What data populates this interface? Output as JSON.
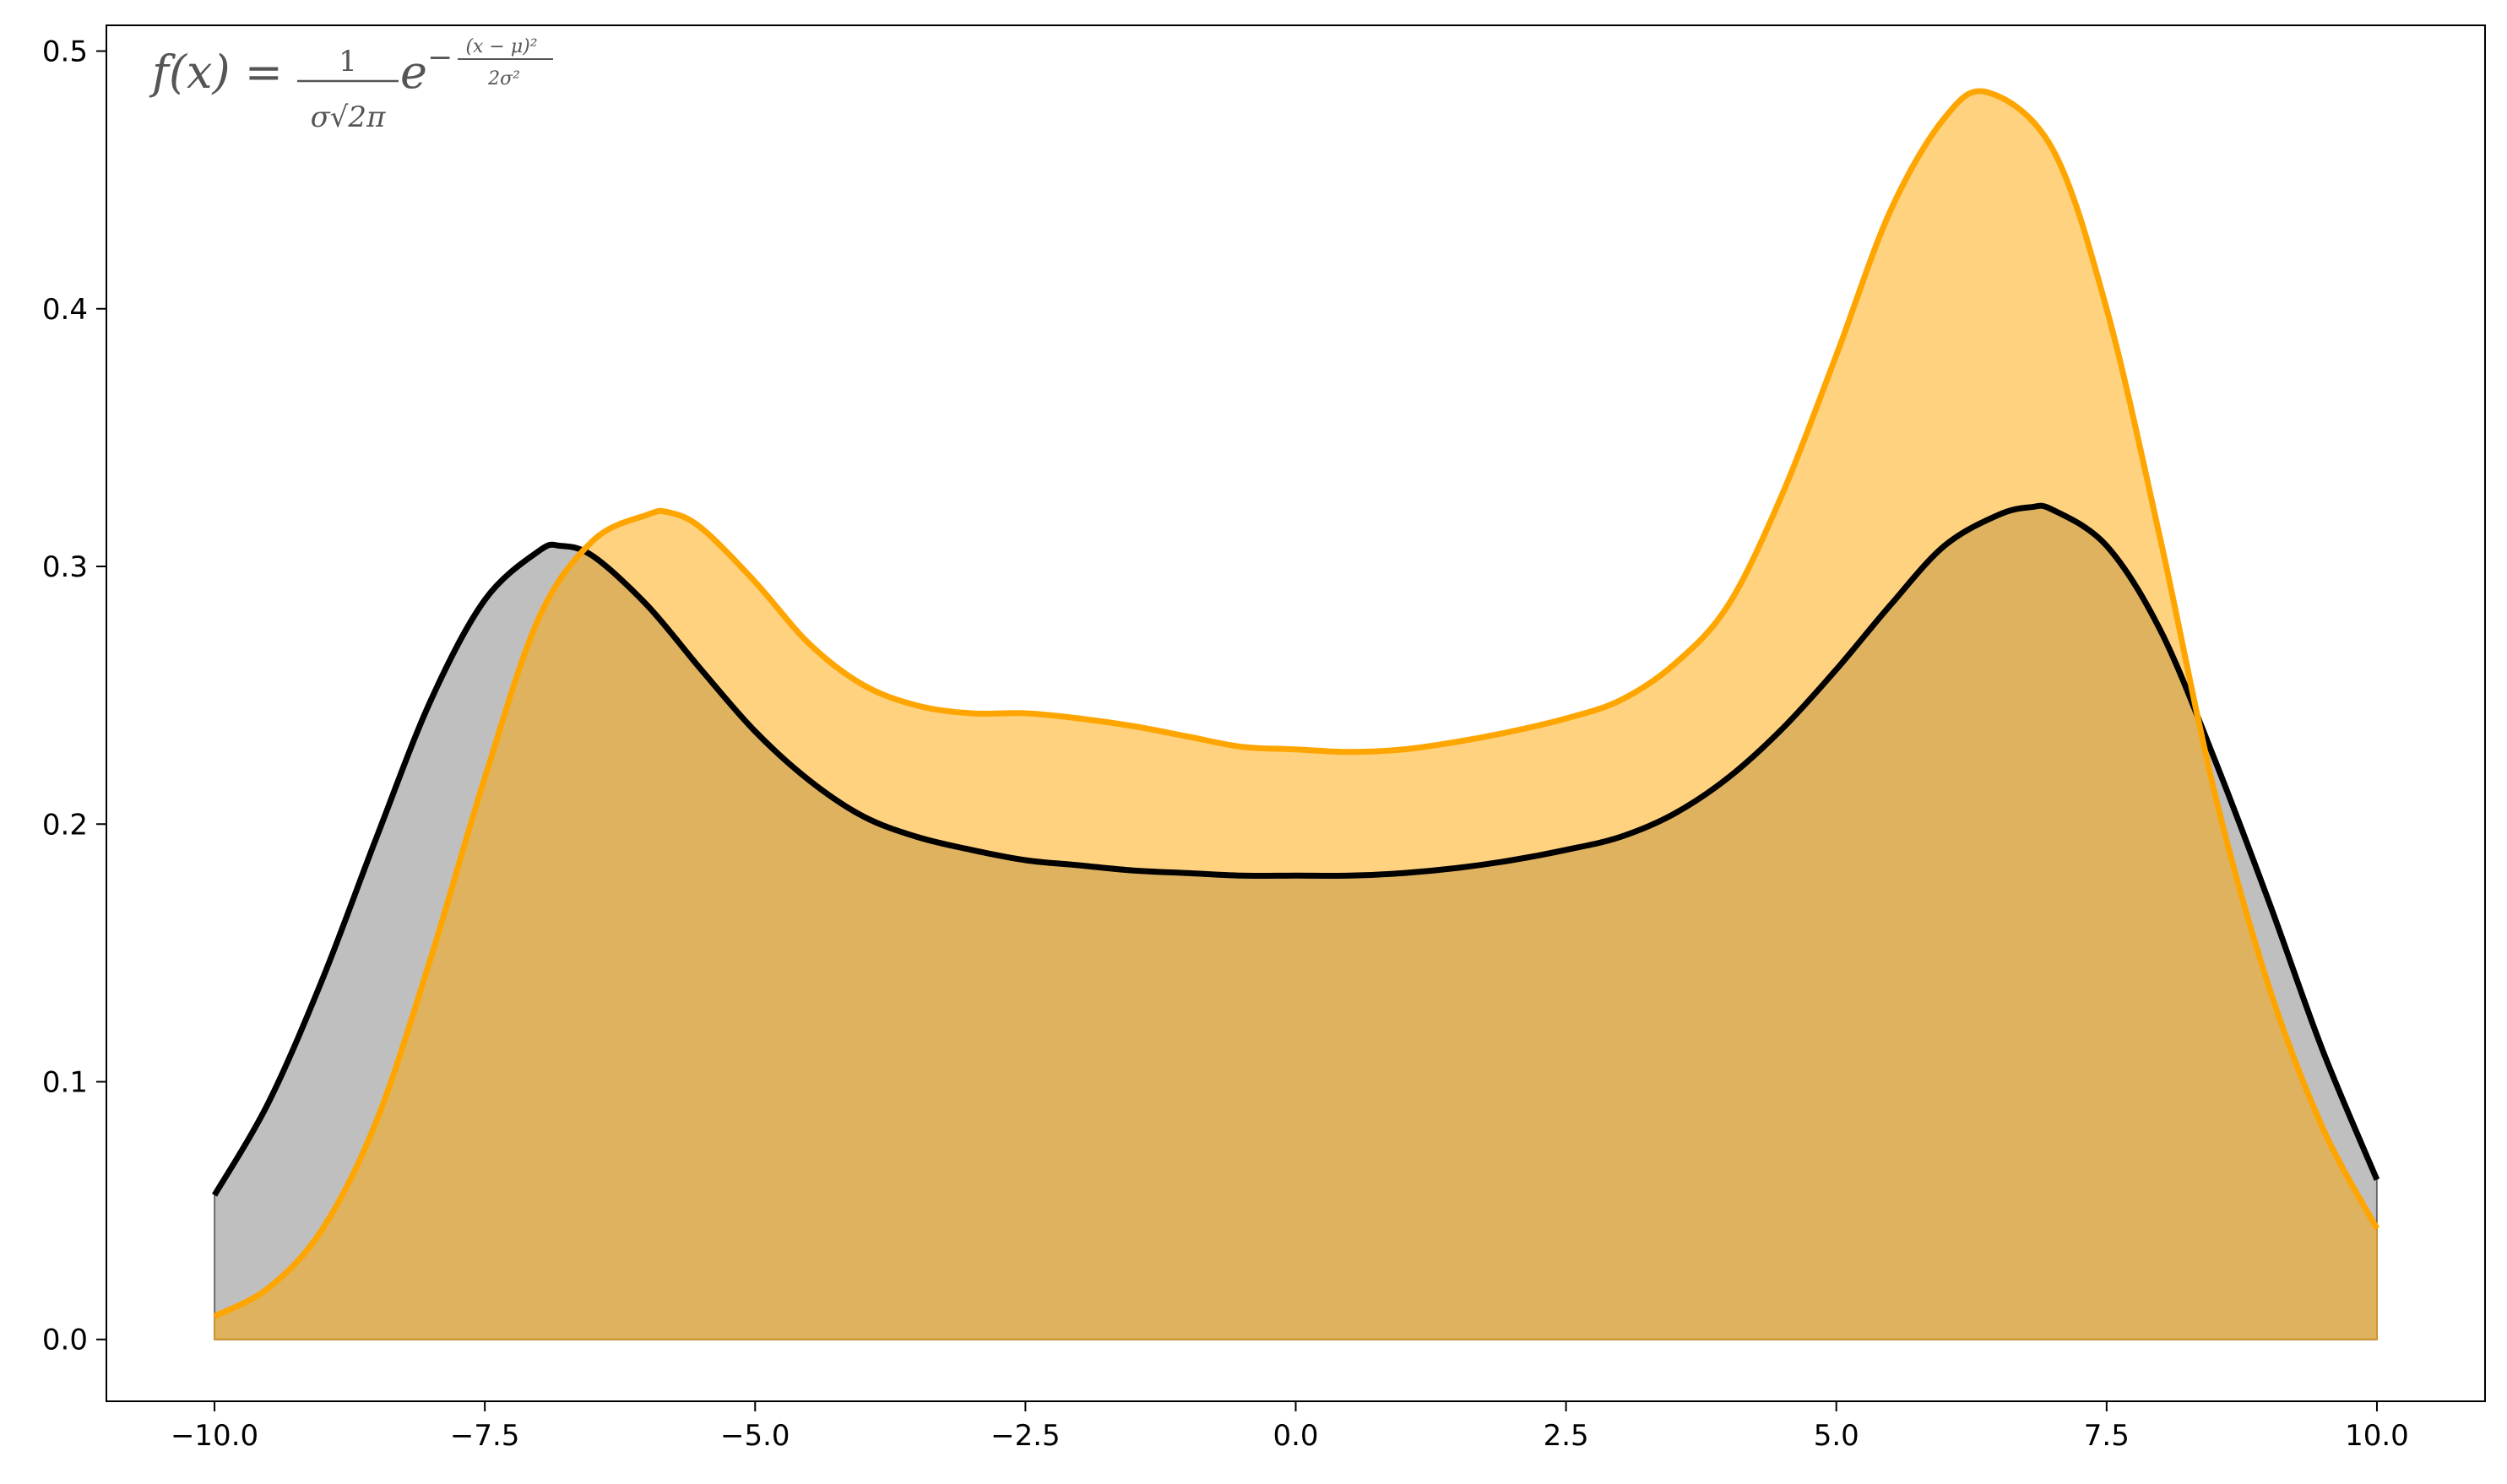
{
  "chart_data": {
    "type": "area",
    "title": "",
    "xlabel": "",
    "ylabel": "",
    "xlim": [
      -11.0,
      11.0
    ],
    "ylim": [
      -0.024,
      0.51
    ],
    "grid": false,
    "legend": "none",
    "annotation": {
      "lhs": "f(x) =",
      "frac1_num": "1",
      "frac1_den": "σ√2π",
      "base": "e",
      "exp_sign": "−",
      "exp_num": "(x − μ)²",
      "exp_den": "2σ²"
    },
    "x_ticks": [
      {
        "value": -10.0,
        "label": "−10.0"
      },
      {
        "value": -7.5,
        "label": "−7.5"
      },
      {
        "value": -5.0,
        "label": "−5.0"
      },
      {
        "value": -2.5,
        "label": "−2.5"
      },
      {
        "value": 0.0,
        "label": "0.0"
      },
      {
        "value": 2.5,
        "label": "2.5"
      },
      {
        "value": 5.0,
        "label": "5.0"
      },
      {
        "value": 7.5,
        "label": "7.5"
      },
      {
        "value": 10.0,
        "label": "10.0"
      }
    ],
    "y_ticks": [
      {
        "value": 0.0,
        "label": "0.0"
      },
      {
        "value": 0.1,
        "label": "0.1"
      },
      {
        "value": 0.2,
        "label": "0.2"
      },
      {
        "value": 0.3,
        "label": "0.3"
      },
      {
        "value": 0.4,
        "label": "0.4"
      },
      {
        "value": 0.5,
        "label": "0.5"
      }
    ],
    "series": [
      {
        "color": "#000000",
        "fill_color": "#808080",
        "x": [
          -10,
          -9.5,
          -9,
          -8.5,
          -8,
          -7.5,
          -7,
          -6.8,
          -6.5,
          -6,
          -5.5,
          -5,
          -4.5,
          -4,
          -3.5,
          -3,
          -2.5,
          -2,
          -1.5,
          -1,
          -0.5,
          0,
          0.5,
          1,
          1.5,
          2,
          2.5,
          3,
          3.5,
          4,
          4.5,
          5,
          5.5,
          6,
          6.5,
          6.8,
          7,
          7.5,
          8,
          8.5,
          9,
          9.5,
          10
        ],
        "y": [
          0.056,
          0.092,
          0.14,
          0.195,
          0.248,
          0.287,
          0.306,
          0.308,
          0.304,
          0.285,
          0.26,
          0.236,
          0.217,
          0.203,
          0.195,
          0.19,
          0.186,
          0.184,
          0.182,
          0.181,
          0.18,
          0.18,
          0.18,
          0.181,
          0.183,
          0.186,
          0.19,
          0.195,
          0.204,
          0.218,
          0.237,
          0.26,
          0.285,
          0.308,
          0.32,
          0.323,
          0.322,
          0.308,
          0.275,
          0.225,
          0.17,
          0.112,
          0.062
        ]
      },
      {
        "color": "#ffa500",
        "fill_color": "#ffa500",
        "x": [
          -10,
          -9.5,
          -9,
          -8.5,
          -8,
          -7.5,
          -7,
          -6.5,
          -6,
          -5.8,
          -5.5,
          -5,
          -4.5,
          -4,
          -3.5,
          -3,
          -2.5,
          -2,
          -1.5,
          -1,
          -0.5,
          0,
          0.5,
          1,
          1.5,
          2,
          2.5,
          3,
          3.5,
          4,
          4.5,
          5,
          5.5,
          6,
          6.4,
          7,
          7.5,
          8,
          8.5,
          9,
          9.5,
          10
        ],
        "y": [
          0.009,
          0.02,
          0.043,
          0.085,
          0.148,
          0.218,
          0.28,
          0.31,
          0.32,
          0.321,
          0.315,
          0.294,
          0.27,
          0.254,
          0.246,
          0.243,
          0.243,
          0.241,
          0.238,
          0.234,
          0.23,
          0.229,
          0.228,
          0.229,
          0.232,
          0.236,
          0.241,
          0.248,
          0.262,
          0.285,
          0.328,
          0.382,
          0.438,
          0.474,
          0.484,
          0.462,
          0.4,
          0.31,
          0.212,
          0.137,
          0.082,
          0.043
        ]
      }
    ]
  }
}
